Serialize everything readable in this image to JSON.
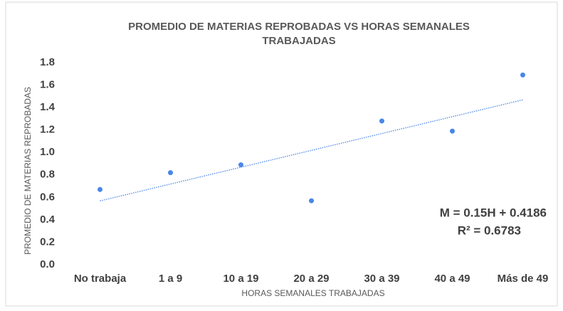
{
  "chart_data": {
    "type": "scatter",
    "title": [
      "PROMEDIO DE MATERIAS REPROBADAS VS HORAS SEMANALES",
      "TRABAJADAS"
    ],
    "xlabel": "HORAS SEMANALES TRABAJADAS",
    "ylabel": "PROMEDIO DE MATERIAS REPROBADAS",
    "categories": [
      "No trabaja",
      "1 a 9",
      "10 a 19",
      "20 a 29",
      "30 a 39",
      "40 a 49",
      "Más de 49"
    ],
    "values": [
      0.67,
      0.82,
      0.89,
      0.57,
      1.28,
      1.19,
      1.69
    ],
    "color": "#4a86e8",
    "ylim": [
      0,
      1.8
    ],
    "yticks": [
      {
        "value": 0,
        "label": "0.0"
      },
      0.2,
      0.4,
      0.6,
      0.8,
      {
        "value": 1,
        "label": "1.0"
      },
      1.2,
      1.4,
      1.6,
      1.8
    ],
    "trendline": {
      "slope": 0.15,
      "intercept": 0.4186,
      "label": "M = 0.15H + 0.4186",
      "r2_label": "R² = 0.6783"
    }
  }
}
